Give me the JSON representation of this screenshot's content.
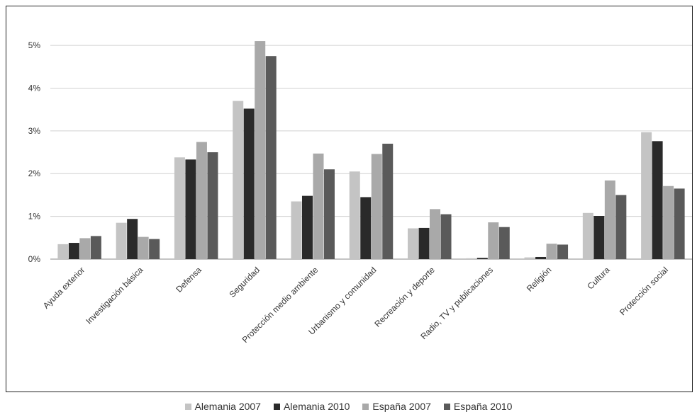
{
  "chart_data": {
    "type": "bar",
    "title": "",
    "xlabel": "",
    "ylabel": "",
    "ylim": [
      0,
      5.25
    ],
    "yticks": [
      "0%",
      "1%",
      "2%",
      "3%",
      "4%",
      "5%"
    ],
    "grid": true,
    "legend_position": "bottom",
    "categories": [
      "Ayuda exterior",
      "Investigación básica",
      "Defensa",
      "Seguridad",
      "Protección medio ambiente",
      "Urbanismo y comunidad",
      "Recreación y deporte",
      "Radio, TV y publicaciones",
      "Religión",
      "Cultura",
      "Protección social"
    ],
    "series": [
      {
        "name": "Alemania 2007",
        "color": "#c4c4c4",
        "values": [
          0.35,
          0.85,
          2.38,
          3.7,
          1.35,
          2.05,
          0.72,
          0.02,
          0.04,
          1.08,
          2.97
        ]
      },
      {
        "name": "Alemania 2010",
        "color": "#2a2a2a",
        "values": [
          0.38,
          0.94,
          2.33,
          3.52,
          1.48,
          1.45,
          0.73,
          0.03,
          0.05,
          1.01,
          2.76
        ]
      },
      {
        "name": "España 2007",
        "color": "#a9a9a9",
        "values": [
          0.49,
          0.52,
          2.74,
          5.1,
          2.47,
          2.46,
          1.17,
          0.86,
          0.36,
          1.84,
          1.71
        ]
      },
      {
        "name": "España 2010",
        "color": "#5a5a5a",
        "values": [
          0.54,
          0.47,
          2.5,
          4.75,
          2.1,
          2.7,
          1.05,
          0.75,
          0.34,
          1.5,
          1.65
        ]
      }
    ]
  }
}
